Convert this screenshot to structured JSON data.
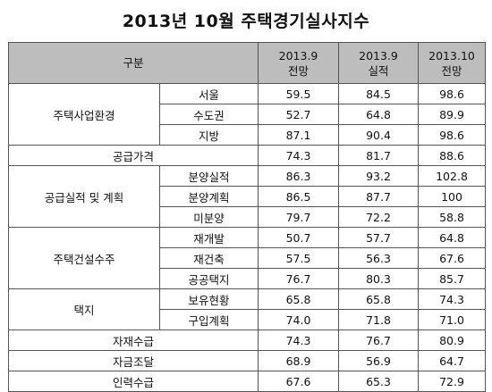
{
  "title": "2013년 10월 주택경기실사지수",
  "header": {
    "category": "구분",
    "columns": [
      {
        "line1": "2013.9",
        "line2": "전망"
      },
      {
        "line1": "2013.9",
        "line2": "실적"
      },
      {
        "line1": "2013.10",
        "line2": "전망"
      }
    ]
  },
  "groups": [
    {
      "label": "주택사업환경",
      "rows": [
        {
          "sub": "서울",
          "values": [
            "59.5",
            "84.5",
            "98.6"
          ]
        },
        {
          "sub": "수도권",
          "values": [
            "52.7",
            "64.8",
            "89.9"
          ]
        },
        {
          "sub": "지방",
          "values": [
            "87.1",
            "90.4",
            "98.6"
          ]
        }
      ]
    },
    {
      "label": "공급가격",
      "values": [
        "74.3",
        "81.7",
        "88.6"
      ]
    },
    {
      "label": "공급실적 및 계획",
      "rows": [
        {
          "sub": "분양실적",
          "values": [
            "86.3",
            "93.2",
            "102.8"
          ]
        },
        {
          "sub": "분양계획",
          "values": [
            "86.5",
            "87.7",
            "100"
          ]
        },
        {
          "sub": "미분양",
          "values": [
            "79.7",
            "72.2",
            "58.8"
          ]
        }
      ]
    },
    {
      "label": "주택건설수주",
      "rows": [
        {
          "sub": "재개발",
          "values": [
            "50.7",
            "57.7",
            "64.8"
          ]
        },
        {
          "sub": "재건축",
          "values": [
            "57.5",
            "56.3",
            "67.6"
          ]
        },
        {
          "sub": "공공택지",
          "values": [
            "76.7",
            "80.3",
            "85.7"
          ]
        }
      ]
    },
    {
      "label": "택지",
      "rows": [
        {
          "sub": "보유현황",
          "values": [
            "65.8",
            "65.8",
            "74.3"
          ]
        },
        {
          "sub": "구입계획",
          "values": [
            "74.0",
            "71.8",
            "71.0"
          ]
        }
      ]
    },
    {
      "label": "자재수급",
      "values": [
        "74.3",
        "76.7",
        "80.9"
      ]
    },
    {
      "label": "자금조달",
      "values": [
        "68.9",
        "56.9",
        "64.7"
      ]
    },
    {
      "label": "인력수급",
      "values": [
        "67.6",
        "65.3",
        "72.9"
      ]
    }
  ],
  "colors": {
    "header_bg": "#bdbdbd",
    "border": "#555555"
  }
}
